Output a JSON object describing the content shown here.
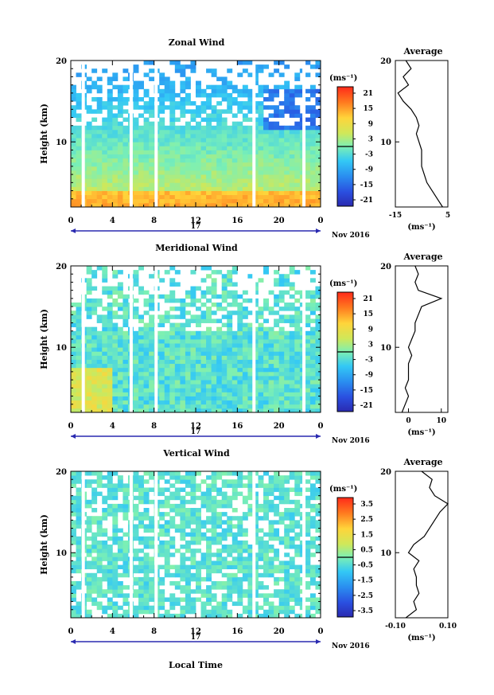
{
  "figure": {
    "date_label": "Nov 2016",
    "day_label": "17",
    "time_axis_label": "Local Time",
    "height_axis_label": "Height (km)",
    "colorbar_unit": "(ms⁻¹)",
    "profile_title": "Average",
    "profile_unit": "(ms⁻¹)"
  },
  "chart_data": [
    {
      "type": "heatmap",
      "title": "Zonal Wind",
      "xlabel": "",
      "ylabel": "Height (km)",
      "xlim": [
        0,
        24
      ],
      "ylim": [
        2,
        20
      ],
      "x_ticks": [
        "0",
        "4",
        "8",
        "12",
        "16",
        "20",
        "0"
      ],
      "y_ticks": [
        "10",
        "20"
      ],
      "colorbar": {
        "unit": "(ms⁻¹)",
        "ticks": [
          "21",
          "15",
          "9",
          "3",
          "-3",
          "-9",
          "-15",
          "-21"
        ],
        "range": [
          -24,
          24
        ]
      },
      "profile": {
        "title": "Average",
        "xlabel": "(ms⁻¹)",
        "xlim": [
          -15,
          5
        ],
        "x_ticks": [
          "-15",
          "5"
        ],
        "y_ticks": [
          "10",
          "20"
        ],
        "heights": [
          2,
          3,
          4,
          5,
          6,
          7,
          8,
          9,
          10,
          11,
          12,
          13,
          14,
          15,
          16,
          17,
          18,
          19,
          20
        ],
        "values": [
          3,
          1,
          -1,
          -3,
          -4,
          -5,
          -5,
          -5,
          -6,
          -7,
          -6,
          -7,
          -9,
          -12,
          -14,
          -10,
          -12,
          -9,
          -11
        ]
      }
    },
    {
      "type": "heatmap",
      "title": "Meridional Wind",
      "xlabel": "",
      "ylabel": "Height (km)",
      "xlim": [
        0,
        24
      ],
      "ylim": [
        2,
        20
      ],
      "x_ticks": [
        "0",
        "4",
        "8",
        "12",
        "16",
        "20",
        "0"
      ],
      "y_ticks": [
        "10",
        "20"
      ],
      "colorbar": {
        "unit": "(ms⁻¹)",
        "ticks": [
          "21",
          "15",
          "9",
          "3",
          "-3",
          "-9",
          "-15",
          "-21"
        ],
        "range": [
          -24,
          24
        ]
      },
      "profile": {
        "title": "Average",
        "xlabel": "(ms⁻¹)",
        "xlim": [
          -4,
          12
        ],
        "x_ticks": [
          "0",
          "10"
        ],
        "y_ticks": [
          "10",
          "20"
        ],
        "heights": [
          2,
          3,
          4,
          5,
          6,
          7,
          8,
          9,
          10,
          11,
          12,
          13,
          14,
          15,
          16,
          17,
          18,
          19,
          20
        ],
        "values": [
          -2,
          -1,
          0,
          -1,
          0,
          0,
          0,
          1,
          0,
          1,
          2,
          2,
          3,
          4,
          10,
          3,
          2,
          3,
          2
        ]
      }
    },
    {
      "type": "heatmap",
      "title": "Vertical Wind",
      "xlabel": "Local Time",
      "ylabel": "Height (km)",
      "xlim": [
        0,
        24
      ],
      "ylim": [
        2,
        20
      ],
      "x_ticks": [
        "0",
        "4",
        "8",
        "12",
        "16",
        "20",
        "0"
      ],
      "y_ticks": [
        "10",
        "20"
      ],
      "colorbar": {
        "unit": "(ms⁻¹)",
        "ticks": [
          "3.5",
          "2.5",
          "1.5",
          "0.5",
          "-0.5",
          "-1.5",
          "-2.5",
          "-3.5"
        ],
        "range": [
          -4,
          4
        ]
      },
      "profile": {
        "title": "Average",
        "xlabel": "(ms⁻¹)",
        "xlim": [
          -0.1,
          0.1
        ],
        "x_ticks": [
          "-0.10",
          "0.10"
        ],
        "y_ticks": [
          "10",
          "20"
        ],
        "heights": [
          2,
          3,
          4,
          5,
          6,
          7,
          8,
          9,
          10,
          11,
          12,
          13,
          14,
          15,
          16,
          17,
          18,
          19,
          20
        ],
        "values": [
          -0.06,
          -0.02,
          -0.03,
          -0.01,
          -0.02,
          -0.02,
          -0.03,
          -0.01,
          -0.05,
          -0.03,
          0.01,
          0.03,
          0.05,
          0.07,
          0.1,
          0.05,
          0.03,
          0.04,
          0.0
        ]
      }
    }
  ]
}
